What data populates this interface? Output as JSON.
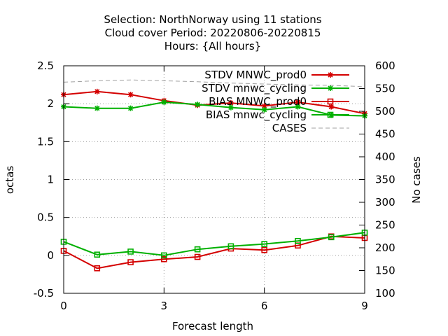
{
  "chart_data": {
    "type": "line",
    "title": [
      "Selection: NorthNorway using    11 stations",
      "Cloud cover   Period: 20220806-20220815",
      "Hours: {All hours}"
    ],
    "xlabel": "Forecast length",
    "ylabel": "octas",
    "y2label": "No cases",
    "xlim": [
      0,
      9
    ],
    "ylim": [
      -0.5,
      2.5
    ],
    "y2lim": [
      100,
      600
    ],
    "xticks": [
      "0",
      "3",
      "6",
      "9"
    ],
    "yticks": [
      "-0.5",
      "0",
      "0.5",
      "1",
      "1.5",
      "2",
      "2.5"
    ],
    "y2ticks": [
      "100",
      "150",
      "200",
      "250",
      "300",
      "350",
      "400",
      "450",
      "500",
      "550",
      "600"
    ],
    "grid": true,
    "legend_position": "top-right",
    "x": [
      0,
      1,
      2,
      3,
      4,
      5,
      6,
      7,
      8,
      9
    ],
    "series": [
      {
        "name": "STDV MNWC_prod0",
        "color": "#d40000",
        "marker": "star",
        "axis": "y",
        "values": [
          2.12,
          2.16,
          2.12,
          2.04,
          1.98,
          2.01,
          1.97,
          2.02,
          1.96,
          1.87
        ]
      },
      {
        "name": "STDV mnwc_cycling",
        "color": "#00b000",
        "marker": "star",
        "axis": "y",
        "values": [
          1.96,
          1.94,
          1.94,
          2.02,
          1.99,
          1.95,
          1.92,
          1.96,
          1.85,
          1.84
        ]
      },
      {
        "name": "BIAS MNWC_prod0",
        "color": "#d40000",
        "marker": "square",
        "axis": "y",
        "values": [
          0.06,
          -0.17,
          -0.09,
          -0.05,
          -0.02,
          0.09,
          0.07,
          0.13,
          0.25,
          0.23
        ]
      },
      {
        "name": "BIAS mnwc_cycling",
        "color": "#00b000",
        "marker": "square",
        "axis": "y",
        "values": [
          0.18,
          0.01,
          0.05,
          0.0,
          0.08,
          0.12,
          0.15,
          0.19,
          0.24,
          0.3
        ]
      },
      {
        "name": "CASES",
        "color": "#a0a0a0",
        "marker": "none",
        "dashed": true,
        "axis": "y2",
        "values": [
          564,
          567,
          569,
          567,
          565,
          562,
          560,
          558,
          557,
          554
        ]
      }
    ]
  }
}
